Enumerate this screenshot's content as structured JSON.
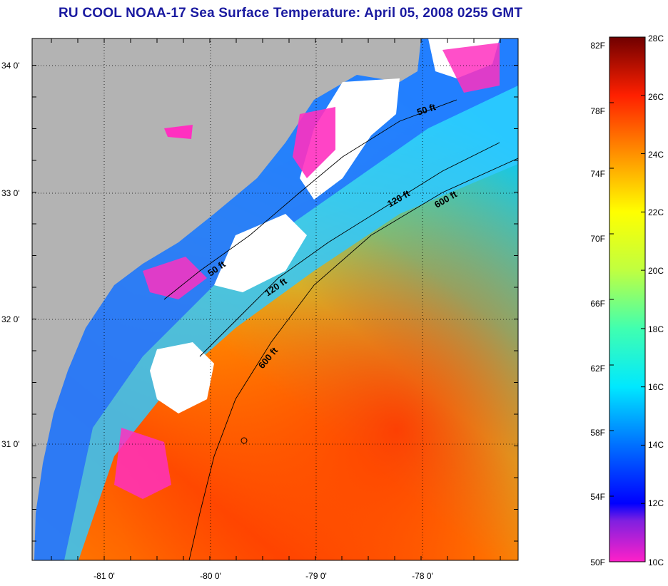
{
  "title": "RU COOL  NOAA-17  Sea Surface Temperature:  April 05, 2008 0255 GMT",
  "map": {
    "lat_labels": [
      "34 0'",
      "33 0'",
      "32 0'",
      "31 0'"
    ],
    "lon_labels": [
      "-81 0'",
      "-80 0'",
      "-79 0'",
      "-78 0'"
    ],
    "contour_labels": [
      "50 ft",
      "120 ft",
      "600 ft",
      "50 ft",
      "120 ft",
      "600 ft"
    ],
    "colors": {
      "land": "#b3b3b3",
      "cloud": "#ffffff",
      "coast": "#000000"
    }
  },
  "colorbar": {
    "f_labels": [
      "82F",
      "78F",
      "74F",
      "70F",
      "66F",
      "62F",
      "58F",
      "54F",
      "50F"
    ],
    "c_labels": [
      "28C",
      "26C",
      "24C",
      "22C",
      "20C",
      "18C",
      "16C",
      "14C",
      "12C",
      "10C"
    ],
    "range_f": [
      50,
      82
    ],
    "range_c": [
      10,
      28
    ],
    "stops": [
      {
        "c": 10,
        "color": "#ff20c8"
      },
      {
        "c": 11.4,
        "color": "#8020e0"
      },
      {
        "c": 12,
        "color": "#0000ff"
      },
      {
        "c": 14,
        "color": "#0070ff"
      },
      {
        "c": 16,
        "color": "#00e8ff"
      },
      {
        "c": 18,
        "color": "#40ffb0"
      },
      {
        "c": 20,
        "color": "#c0ff40"
      },
      {
        "c": 22,
        "color": "#ffff00"
      },
      {
        "c": 24,
        "color": "#ff9000"
      },
      {
        "c": 26,
        "color": "#ff2000"
      },
      {
        "c": 28,
        "color": "#700000"
      }
    ]
  }
}
